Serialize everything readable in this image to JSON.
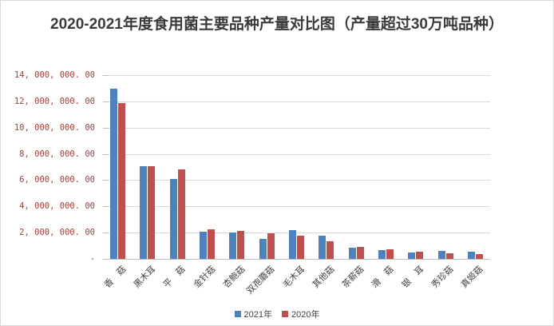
{
  "title": "2020-2021年度食用菌主要品种产量对比图（产量超过30万吨品种）",
  "colors": {
    "series_2021": "#4F81BD",
    "series_2020": "#C0504D",
    "gridline": "#D9D9D9",
    "axis_line": "#BFBFBF",
    "y_tick_label": "#9C4139",
    "x_tick_label": "#404040",
    "title_text": "#3B3B3B",
    "background": "#FFFFFF"
  },
  "y_axis": {
    "tick_labels": [
      "14, 000, 000. 00",
      "12, 000, 000. 00",
      "10, 000, 000. 00",
      "8, 000, 000. 00",
      "6, 000, 000. 00",
      "4, 000, 000. 00",
      "2, 000, 000. 00",
      "-"
    ]
  },
  "legend": {
    "position": "bottom",
    "items": [
      {
        "label": "2021年",
        "color": "#4F81BD"
      },
      {
        "label": "2020年",
        "color": "#C0504D"
      }
    ]
  },
  "chart_data": {
    "type": "bar",
    "title": "2020-2021年度食用菌主要品种产量对比图（产量超过30万吨品种）",
    "categories": [
      "香　菇",
      "黑木耳",
      "平　菇",
      "金针菇",
      "杏鲍菇",
      "双孢蘑菇",
      "毛木耳",
      "其他菇",
      "茶薪菇",
      "滑　菇",
      "银　耳",
      "秀珍菇",
      "真姬菇"
    ],
    "series": [
      {
        "name": "2021年",
        "color": "#4F81BD",
        "values": [
          12970000,
          7080000,
          6090000,
          2060000,
          1980000,
          1520000,
          2180000,
          1780000,
          860000,
          670000,
          460000,
          610000,
          570000
        ]
      },
      {
        "name": "2020年",
        "color": "#C0504D",
        "values": [
          11890000,
          7080000,
          6820000,
          2240000,
          2100000,
          1930000,
          1740000,
          1330000,
          920000,
          730000,
          530000,
          400000,
          370000
        ]
      }
    ],
    "xlabel": "",
    "ylabel": "",
    "ylim": [
      0,
      14000000
    ],
    "ytick_step": 2000000,
    "grid": true,
    "legend_position": "bottom"
  }
}
